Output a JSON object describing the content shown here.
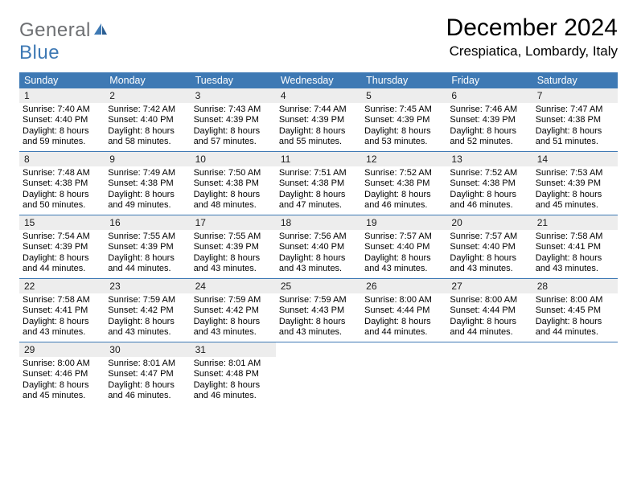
{
  "logo": {
    "word1": "General",
    "word2": "Blue"
  },
  "header": {
    "month_title": "December 2024",
    "location": "Crespiatica, Lombardy, Italy"
  },
  "colors": {
    "brand_blue": "#3e79b4",
    "brand_gray": "#6d6f72",
    "header_bg": "#3e79b4",
    "header_text": "#ffffff",
    "daynum_bg": "#ededed",
    "page_bg": "#ffffff",
    "text": "#000000"
  },
  "dow": [
    "Sunday",
    "Monday",
    "Tuesday",
    "Wednesday",
    "Thursday",
    "Friday",
    "Saturday"
  ],
  "weeks": [
    [
      {
        "n": "1",
        "sr": "Sunrise: 7:40 AM",
        "ss": "Sunset: 4:40 PM",
        "dl": "Daylight: 8 hours and 59 minutes."
      },
      {
        "n": "2",
        "sr": "Sunrise: 7:42 AM",
        "ss": "Sunset: 4:40 PM",
        "dl": "Daylight: 8 hours and 58 minutes."
      },
      {
        "n": "3",
        "sr": "Sunrise: 7:43 AM",
        "ss": "Sunset: 4:39 PM",
        "dl": "Daylight: 8 hours and 57 minutes."
      },
      {
        "n": "4",
        "sr": "Sunrise: 7:44 AM",
        "ss": "Sunset: 4:39 PM",
        "dl": "Daylight: 8 hours and 55 minutes."
      },
      {
        "n": "5",
        "sr": "Sunrise: 7:45 AM",
        "ss": "Sunset: 4:39 PM",
        "dl": "Daylight: 8 hours and 53 minutes."
      },
      {
        "n": "6",
        "sr": "Sunrise: 7:46 AM",
        "ss": "Sunset: 4:39 PM",
        "dl": "Daylight: 8 hours and 52 minutes."
      },
      {
        "n": "7",
        "sr": "Sunrise: 7:47 AM",
        "ss": "Sunset: 4:38 PM",
        "dl": "Daylight: 8 hours and 51 minutes."
      }
    ],
    [
      {
        "n": "8",
        "sr": "Sunrise: 7:48 AM",
        "ss": "Sunset: 4:38 PM",
        "dl": "Daylight: 8 hours and 50 minutes."
      },
      {
        "n": "9",
        "sr": "Sunrise: 7:49 AM",
        "ss": "Sunset: 4:38 PM",
        "dl": "Daylight: 8 hours and 49 minutes."
      },
      {
        "n": "10",
        "sr": "Sunrise: 7:50 AM",
        "ss": "Sunset: 4:38 PM",
        "dl": "Daylight: 8 hours and 48 minutes."
      },
      {
        "n": "11",
        "sr": "Sunrise: 7:51 AM",
        "ss": "Sunset: 4:38 PM",
        "dl": "Daylight: 8 hours and 47 minutes."
      },
      {
        "n": "12",
        "sr": "Sunrise: 7:52 AM",
        "ss": "Sunset: 4:38 PM",
        "dl": "Daylight: 8 hours and 46 minutes."
      },
      {
        "n": "13",
        "sr": "Sunrise: 7:52 AM",
        "ss": "Sunset: 4:38 PM",
        "dl": "Daylight: 8 hours and 46 minutes."
      },
      {
        "n": "14",
        "sr": "Sunrise: 7:53 AM",
        "ss": "Sunset: 4:39 PM",
        "dl": "Daylight: 8 hours and 45 minutes."
      }
    ],
    [
      {
        "n": "15",
        "sr": "Sunrise: 7:54 AM",
        "ss": "Sunset: 4:39 PM",
        "dl": "Daylight: 8 hours and 44 minutes."
      },
      {
        "n": "16",
        "sr": "Sunrise: 7:55 AM",
        "ss": "Sunset: 4:39 PM",
        "dl": "Daylight: 8 hours and 44 minutes."
      },
      {
        "n": "17",
        "sr": "Sunrise: 7:55 AM",
        "ss": "Sunset: 4:39 PM",
        "dl": "Daylight: 8 hours and 43 minutes."
      },
      {
        "n": "18",
        "sr": "Sunrise: 7:56 AM",
        "ss": "Sunset: 4:40 PM",
        "dl": "Daylight: 8 hours and 43 minutes."
      },
      {
        "n": "19",
        "sr": "Sunrise: 7:57 AM",
        "ss": "Sunset: 4:40 PM",
        "dl": "Daylight: 8 hours and 43 minutes."
      },
      {
        "n": "20",
        "sr": "Sunrise: 7:57 AM",
        "ss": "Sunset: 4:40 PM",
        "dl": "Daylight: 8 hours and 43 minutes."
      },
      {
        "n": "21",
        "sr": "Sunrise: 7:58 AM",
        "ss": "Sunset: 4:41 PM",
        "dl": "Daylight: 8 hours and 43 minutes."
      }
    ],
    [
      {
        "n": "22",
        "sr": "Sunrise: 7:58 AM",
        "ss": "Sunset: 4:41 PM",
        "dl": "Daylight: 8 hours and 43 minutes."
      },
      {
        "n": "23",
        "sr": "Sunrise: 7:59 AM",
        "ss": "Sunset: 4:42 PM",
        "dl": "Daylight: 8 hours and 43 minutes."
      },
      {
        "n": "24",
        "sr": "Sunrise: 7:59 AM",
        "ss": "Sunset: 4:42 PM",
        "dl": "Daylight: 8 hours and 43 minutes."
      },
      {
        "n": "25",
        "sr": "Sunrise: 7:59 AM",
        "ss": "Sunset: 4:43 PM",
        "dl": "Daylight: 8 hours and 43 minutes."
      },
      {
        "n": "26",
        "sr": "Sunrise: 8:00 AM",
        "ss": "Sunset: 4:44 PM",
        "dl": "Daylight: 8 hours and 44 minutes."
      },
      {
        "n": "27",
        "sr": "Sunrise: 8:00 AM",
        "ss": "Sunset: 4:44 PM",
        "dl": "Daylight: 8 hours and 44 minutes."
      },
      {
        "n": "28",
        "sr": "Sunrise: 8:00 AM",
        "ss": "Sunset: 4:45 PM",
        "dl": "Daylight: 8 hours and 44 minutes."
      }
    ],
    [
      {
        "n": "29",
        "sr": "Sunrise: 8:00 AM",
        "ss": "Sunset: 4:46 PM",
        "dl": "Daylight: 8 hours and 45 minutes."
      },
      {
        "n": "30",
        "sr": "Sunrise: 8:01 AM",
        "ss": "Sunset: 4:47 PM",
        "dl": "Daylight: 8 hours and 46 minutes."
      },
      {
        "n": "31",
        "sr": "Sunrise: 8:01 AM",
        "ss": "Sunset: 4:48 PM",
        "dl": "Daylight: 8 hours and 46 minutes."
      },
      null,
      null,
      null,
      null
    ]
  ]
}
